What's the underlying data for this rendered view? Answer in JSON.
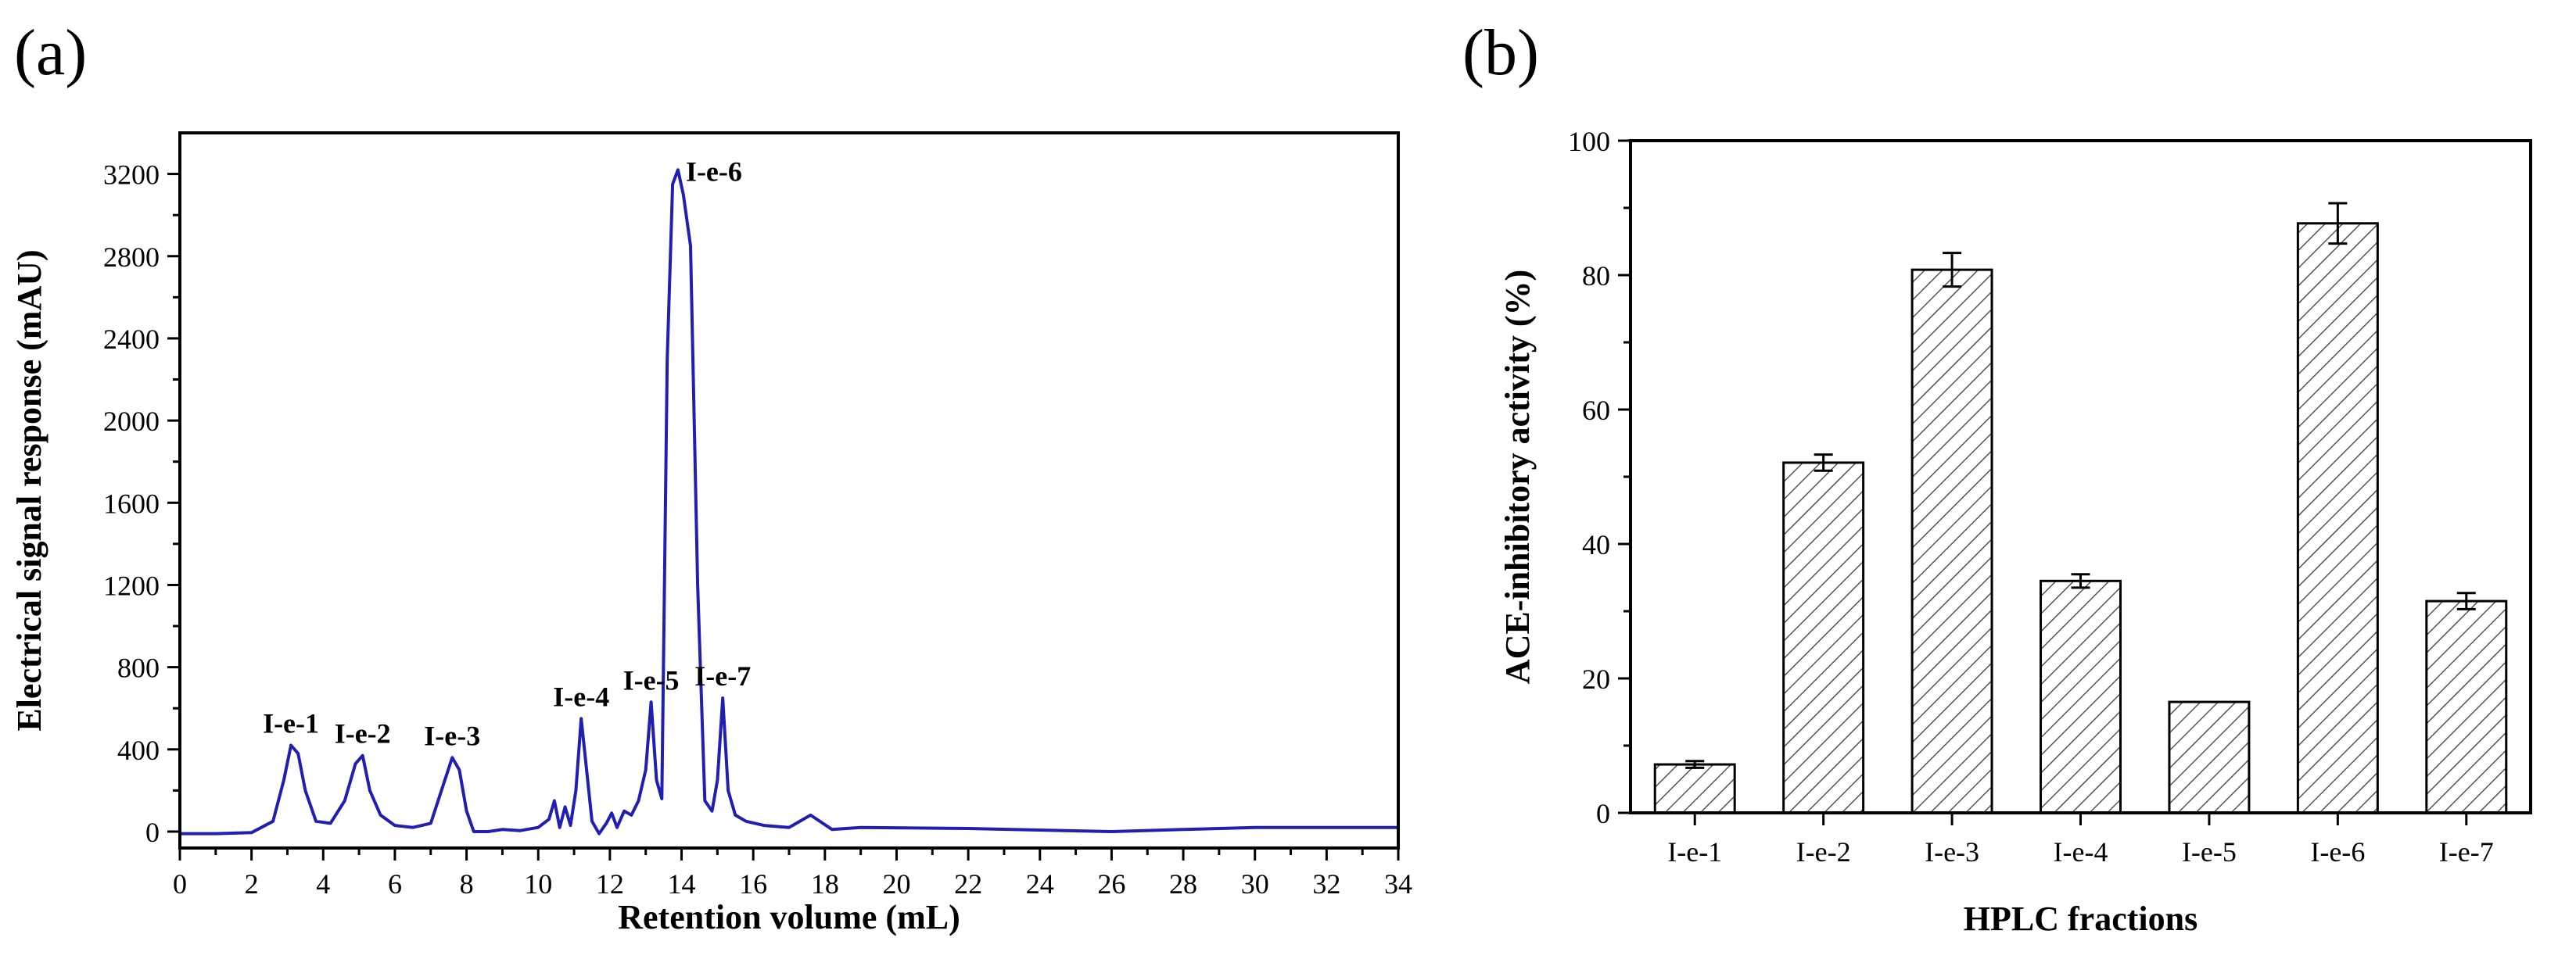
{
  "panels": [
    {
      "label": "(a)"
    },
    {
      "label": "(b)"
    }
  ],
  "colors": {
    "trace": "#1f1fb4",
    "axis": "#000000",
    "bar_fill": "#ffffff",
    "hatch": "#555555"
  },
  "chart_data": [
    {
      "type": "line",
      "panel": "(a)",
      "title": "",
      "xlabel": "Retention volume (mL)",
      "ylabel": "Electrical signal response (mAU)",
      "xlim": [
        0,
        34
      ],
      "ylim": [
        -80,
        3400
      ],
      "xticks": [
        0,
        2,
        4,
        6,
        8,
        10,
        12,
        14,
        16,
        18,
        20,
        22,
        24,
        26,
        28,
        30,
        32,
        34
      ],
      "yticks": [
        0,
        400,
        800,
        1200,
        1600,
        2000,
        2400,
        2800,
        3200
      ],
      "grid": false,
      "series": [
        {
          "x": [
            0,
            1,
            2,
            2.6,
            2.9,
            3.1,
            3.3,
            3.5,
            3.8,
            4.2,
            4.6,
            4.9,
            5.1,
            5.3,
            5.6,
            6.0,
            6.5,
            7.0,
            7.3,
            7.6,
            7.8,
            8.0,
            8.2,
            8.6,
            9.0,
            9.5,
            10.0,
            10.3,
            10.45,
            10.6,
            10.75,
            10.9,
            11.05,
            11.2,
            11.35,
            11.5,
            11.7,
            11.9,
            12.05,
            12.2,
            12.4,
            12.6,
            12.8,
            13.0,
            13.15,
            13.3,
            13.45,
            13.6,
            13.75,
            13.9,
            14.05,
            14.25,
            14.45,
            14.65,
            14.85,
            15.0,
            15.15,
            15.3,
            15.5,
            15.8,
            16.3,
            17.0,
            17.6,
            18.2,
            19,
            22,
            26,
            28,
            30,
            34
          ],
          "y": [
            -10,
            -10,
            -5,
            50,
            250,
            420,
            380,
            200,
            50,
            40,
            150,
            330,
            370,
            200,
            80,
            30,
            20,
            40,
            200,
            360,
            300,
            100,
            0,
            0,
            10,
            5,
            20,
            60,
            150,
            20,
            120,
            30,
            200,
            550,
            300,
            50,
            -10,
            40,
            90,
            20,
            100,
            80,
            150,
            300,
            630,
            250,
            160,
            2300,
            3150,
            3220,
            3100,
            2850,
            1200,
            150,
            100,
            250,
            650,
            200,
            80,
            50,
            30,
            20,
            80,
            10,
            20,
            15,
            0,
            10,
            20,
            20
          ],
          "peak_labels": [
            {
              "text": "I-e-1",
              "x": 3.1,
              "y": 420
            },
            {
              "text": "I-e-2",
              "x": 5.1,
              "y": 370
            },
            {
              "text": "I-e-3",
              "x": 7.6,
              "y": 360
            },
            {
              "text": "I-e-4",
              "x": 11.2,
              "y": 550
            },
            {
              "text": "I-e-5",
              "x": 13.15,
              "y": 630
            },
            {
              "text": "I-e-6",
              "x": 13.9,
              "y": 3220
            },
            {
              "text": "I-e-7",
              "x": 15.15,
              "y": 650
            }
          ]
        }
      ]
    },
    {
      "type": "bar",
      "panel": "(b)",
      "title": "",
      "xlabel": "HPLC fractions",
      "ylabel": "ACE-inhibitory activity (%)",
      "ylim": [
        0,
        100
      ],
      "yticks": [
        0,
        20,
        40,
        60,
        80,
        100
      ],
      "categories": [
        "I-e-1",
        "I-e-2",
        "I-e-3",
        "I-e-4",
        "I-e-5",
        "I-e-6",
        "I-e-7"
      ],
      "values": [
        7.2,
        52.1,
        80.8,
        34.5,
        16.5,
        87.7,
        31.5
      ],
      "errors": [
        0.5,
        1.2,
        2.5,
        1.0,
        0,
        3.0,
        1.2
      ],
      "grid": false
    }
  ]
}
